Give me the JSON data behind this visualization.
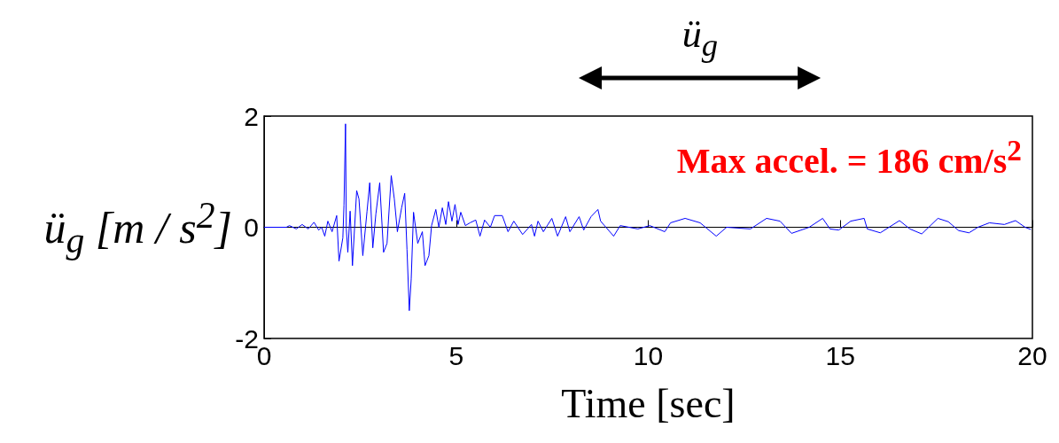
{
  "chart_data": {
    "type": "line",
    "xlabel": "Time [sec]",
    "ylabel": "ü$_{g}$ [m / s$^{2}$]",
    "annotations": [
      "ü$_{g}$",
      "Max accel. =   186 cm/s$^{2}$"
    ],
    "x": [
      0,
      0.58,
      0.66,
      0.84,
      0.99,
      1.15,
      1.3,
      1.42,
      1.5,
      1.58,
      1.66,
      1.77,
      1.89,
      1.95,
      2.05,
      2.08,
      2.12,
      2.14,
      2.18,
      2.24,
      2.3,
      2.41,
      2.47,
      2.57,
      2.68,
      2.75,
      2.83,
      2.91,
      3.01,
      3.11,
      3.2,
      3.31,
      3.39,
      3.47,
      3.58,
      3.66,
      3.72,
      3.78,
      3.83,
      3.89,
      4.0,
      4.12,
      4.19,
      4.29,
      4.36,
      4.47,
      4.55,
      4.64,
      4.73,
      4.8,
      4.89,
      4.97,
      5.05,
      5.12,
      5.24,
      5.36,
      5.51,
      5.62,
      5.74,
      5.89,
      6.0,
      6.2,
      6.35,
      6.5,
      6.73,
      6.96,
      7.04,
      7.13,
      7.27,
      7.49,
      7.64,
      7.85,
      7.96,
      8.2,
      8.32,
      8.51,
      8.69,
      8.76,
      9.1,
      9.27,
      9.73,
      10.04,
      10.43,
      10.58,
      10.96,
      11.35,
      11.77,
      12.04,
      12.66,
      13.08,
      13.43,
      13.73,
      14.19,
      14.54,
      14.73,
      14.96,
      15.27,
      15.62,
      15.7,
      16.04,
      16.54,
      16.81,
      17.12,
      17.54,
      17.81,
      18.08,
      18.35,
      18.58,
      18.88,
      19.27,
      19.56,
      19.81,
      19.96
    ],
    "series": [
      {
        "color": "#0000ff",
        "values": [
          0,
          0,
          0.03,
          -0.03,
          0.05,
          -0.03,
          0.09,
          -0.05,
          0,
          -0.16,
          0.11,
          -0.08,
          0.21,
          -0.61,
          -0.19,
          0.4,
          1.86,
          -0.03,
          -0.45,
          0.29,
          -0.69,
          0.66,
          0.51,
          -0.51,
          0.29,
          0.8,
          -0.37,
          0.24,
          0.8,
          -0.45,
          -0.29,
          0.93,
          0.51,
          -0.08,
          0.35,
          0.61,
          -0.4,
          -1.5,
          -0.93,
          0.27,
          -0.29,
          -0.08,
          -0.69,
          -0.51,
          0.03,
          0.32,
          0,
          0.35,
          0.05,
          0.46,
          0.11,
          0.41,
          0.05,
          0.27,
          0.03,
          0.08,
          0.13,
          -0.16,
          0.13,
          0,
          0.21,
          0.21,
          -0.08,
          0.11,
          -0.13,
          0.05,
          -0.16,
          0.11,
          -0.08,
          0.16,
          -0.16,
          0.19,
          -0.08,
          0.19,
          -0.05,
          0.19,
          0.32,
          0.11,
          -0.16,
          0.03,
          -0.03,
          0.03,
          -0.08,
          0.08,
          0.16,
          0.08,
          -0.16,
          0,
          -0.03,
          0.16,
          0.11,
          -0.11,
          0,
          0.16,
          -0.03,
          -0.05,
          0.11,
          0.16,
          -0.03,
          -0.1,
          0.12,
          -0.03,
          -0.12,
          0.16,
          0.1,
          -0.06,
          -0.1,
          0,
          0.08,
          0.05,
          0.12,
          0,
          -0.04
        ]
      }
    ],
    "xlim": [
      0,
      20
    ],
    "xticks": [
      0,
      5,
      10,
      15,
      20
    ],
    "ylim": [
      -2,
      2
    ],
    "yticks": [
      -2,
      0,
      2
    ],
    "marker": "none",
    "line_style": "solid"
  }
}
